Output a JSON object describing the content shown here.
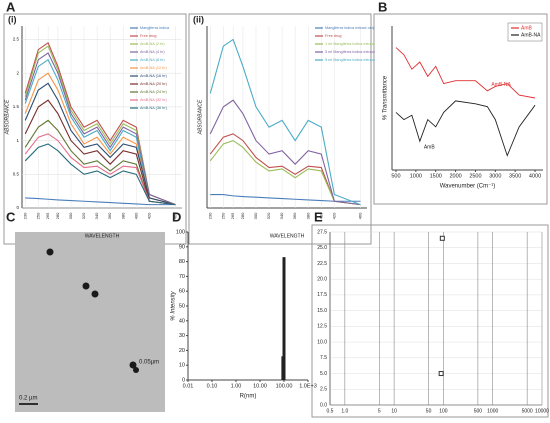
{
  "panels": [
    "A",
    "B",
    "C",
    "D",
    "E"
  ],
  "micrograph": {
    "scale_labels": [
      "0.05µm",
      "0.2 µm"
    ]
  },
  "chart_data": [
    {
      "type": "line",
      "label": "(i)",
      "y_label": "ABSORBANCE",
      "x_label": "WAVELENGTH",
      "legend": "upper right",
      "x": [
        230,
        250,
        265,
        280,
        300,
        320,
        340,
        360,
        380,
        400,
        420,
        460
      ],
      "xlim": [
        225,
        470
      ],
      "ylim": [
        0,
        2.7
      ],
      "yticks": [
        0,
        0.5,
        1,
        1.5,
        2,
        2.5
      ],
      "grid": true,
      "series": [
        {
          "name": "Mangiferra indica",
          "color": "#4a7ebb",
          "values": [
            0.15,
            0.14,
            0.13,
            0.12,
            0.11,
            0.1,
            0.09,
            0.08,
            0.07,
            0.06,
            0.05,
            0.05
          ]
        },
        {
          "name": "Free drug",
          "color": "#c0504d",
          "values": [
            1.7,
            2.35,
            2.45,
            2.1,
            1.5,
            1.2,
            1.3,
            1.0,
            1.3,
            1.2,
            0.2,
            0.05
          ]
        },
        {
          "name": "AmB-NA (2 hr)",
          "color": "#9bbb59",
          "values": [
            1.65,
            2.3,
            2.4,
            2.05,
            1.45,
            1.15,
            1.25,
            0.95,
            1.25,
            1.15,
            0.2,
            0.05
          ]
        },
        {
          "name": "AmB-NA (4 hr)",
          "color": "#8064a2",
          "values": [
            1.6,
            2.2,
            2.3,
            2.0,
            1.4,
            1.1,
            1.2,
            0.9,
            1.2,
            1.1,
            0.2,
            0.05
          ]
        },
        {
          "name": "AmB-NA (8 hr)",
          "color": "#4bacc6",
          "values": [
            1.55,
            2.1,
            2.2,
            1.9,
            1.35,
            1.05,
            1.15,
            0.85,
            1.15,
            1.05,
            0.15,
            0.05
          ]
        },
        {
          "name": "AmB-NA (12 hr)",
          "color": "#f79646",
          "values": [
            1.4,
            1.9,
            2.0,
            1.75,
            1.25,
            0.95,
            1.05,
            0.8,
            1.05,
            0.95,
            0.15,
            0.05
          ]
        },
        {
          "name": "AmB-NA (16 hr)",
          "color": "#2c4d75",
          "values": [
            1.3,
            1.75,
            1.85,
            1.6,
            1.15,
            0.9,
            0.95,
            0.75,
            0.95,
            0.9,
            0.15,
            0.05
          ]
        },
        {
          "name": "AmB-NA (20 hr)",
          "color": "#772c2a",
          "values": [
            1.1,
            1.5,
            1.6,
            1.4,
            1.0,
            0.8,
            0.85,
            0.65,
            0.85,
            0.8,
            0.1,
            0.05
          ]
        },
        {
          "name": "AmB-NA (24 hr)",
          "color": "#5f7530",
          "values": [
            0.9,
            1.2,
            1.3,
            1.15,
            0.85,
            0.65,
            0.7,
            0.55,
            0.7,
            0.65,
            0.1,
            0.05
          ]
        },
        {
          "name": "AmB-NA (32 hr)",
          "color": "#e46c8a",
          "values": [
            0.8,
            1.05,
            1.1,
            1.0,
            0.75,
            0.6,
            0.62,
            0.5,
            0.62,
            0.6,
            0.1,
            0.05
          ]
        },
        {
          "name": "AmB-NA (36 hr)",
          "color": "#276a7c",
          "values": [
            0.7,
            0.9,
            0.95,
            0.85,
            0.65,
            0.5,
            0.55,
            0.45,
            0.55,
            0.5,
            0.1,
            0.05
          ]
        }
      ]
    },
    {
      "type": "line",
      "label": "(ii)",
      "y_label": "ABSORBANCE",
      "x_label": "WAVELENGTH",
      "legend": "upper right",
      "x": [
        230,
        250,
        265,
        280,
        300,
        320,
        340,
        360,
        380,
        400,
        420,
        460
      ],
      "xlim": [
        225,
        470
      ],
      "ylim": [
        0,
        2.7
      ],
      "grid": true,
      "series": [
        {
          "name": "Mangiferra indica extract only",
          "color": "#4a7ebb",
          "values": [
            0.2,
            0.2,
            0.18,
            0.17,
            0.16,
            0.15,
            0.14,
            0.13,
            0.12,
            0.11,
            0.1,
            0.1
          ]
        },
        {
          "name": "Free drug",
          "color": "#c0504d",
          "values": [
            0.8,
            1.05,
            1.1,
            1.0,
            0.75,
            0.6,
            0.62,
            0.5,
            0.62,
            0.6,
            0.1,
            0.05
          ]
        },
        {
          "name": "1 ml Mangiferra indica extract",
          "color": "#9bbb59",
          "values": [
            0.7,
            0.95,
            1.0,
            0.9,
            0.68,
            0.55,
            0.58,
            0.45,
            0.58,
            0.55,
            0.1,
            0.05
          ]
        },
        {
          "name": "3 ml Mangiferra indica extract",
          "color": "#8064a2",
          "values": [
            1.1,
            1.5,
            1.6,
            1.4,
            1.0,
            0.8,
            0.85,
            0.65,
            0.85,
            0.8,
            0.1,
            0.05
          ]
        },
        {
          "name": "5 ml Mangiferra indica extract",
          "color": "#4bacc6",
          "values": [
            1.7,
            2.4,
            2.5,
            2.1,
            1.5,
            1.2,
            1.3,
            1.0,
            1.3,
            1.2,
            0.2,
            0.05
          ]
        }
      ]
    },
    {
      "type": "line",
      "y_label": "% Transmittance",
      "x_label": "Wavenumber (Cm⁻¹)",
      "legend": "upper right",
      "x": [
        500,
        700,
        900,
        1100,
        1300,
        1500,
        1700,
        2000,
        2500,
        2800,
        3000,
        3300,
        3600,
        4000
      ],
      "xlim": [
        400,
        4200
      ],
      "ylim": [
        0,
        100
      ],
      "xticks": [
        500,
        1000,
        1500,
        2000,
        2500,
        3000,
        3500,
        4000
      ],
      "annotations": [
        "AmB-NA",
        "AmB"
      ],
      "series": [
        {
          "name": "AmB",
          "color": "#e03030",
          "values": [
            85,
            80,
            70,
            75,
            65,
            72,
            60,
            62,
            62,
            55,
            58,
            60,
            52,
            50
          ]
        },
        {
          "name": "AmB-NA",
          "color": "#222222",
          "values": [
            40,
            35,
            38,
            20,
            35,
            30,
            40,
            48,
            46,
            44,
            35,
            10,
            30,
            45
          ]
        }
      ]
    },
    {
      "type": "bar",
      "y_label": "% Intensity",
      "x_label": "R(nm)",
      "xscale": "log",
      "color": "#222222",
      "x": [
        90,
        100
      ],
      "values": [
        16,
        83
      ],
      "xlim": [
        0.01,
        1000
      ],
      "ylim": [
        0,
        100
      ],
      "xticks": [
        {
          "value": 0.01,
          "label": "0.01"
        },
        {
          "value": 0.1,
          "label": "0.10"
        },
        {
          "value": 1,
          "label": "1.00"
        },
        {
          "value": 10,
          "label": "10.00"
        },
        {
          "value": 100,
          "label": "100.00"
        },
        {
          "value": 1000,
          "label": "1.0E+3"
        }
      ],
      "yticks": [
        0,
        10,
        20,
        30,
        40,
        50,
        60,
        70,
        80,
        90,
        100
      ]
    },
    {
      "type": "scatter",
      "xscale": "log",
      "color": "#333333",
      "grid": true,
      "x": [
        95,
        90
      ],
      "values": [
        26.5,
        5
      ],
      "xlim": [
        0.5,
        10000
      ],
      "ylim": [
        0,
        27.5
      ],
      "xticks": [
        0.5,
        {
          "value": 1,
          "label": "1.0"
        },
        5,
        10,
        50,
        100,
        500,
        1000,
        5000,
        10000
      ],
      "yticks": [
        {
          "value": 0,
          "label": "0.0"
        },
        2.5,
        {
          "value": 5,
          "label": "5.0"
        },
        7.5,
        {
          "value": 10,
          "label": "10.0"
        },
        12.5,
        {
          "value": 15,
          "label": "15.0"
        },
        17.5,
        {
          "value": 20,
          "label": "20.0"
        },
        22.5,
        {
          "value": 25,
          "label": "25.0"
        },
        27.5
      ]
    }
  ]
}
